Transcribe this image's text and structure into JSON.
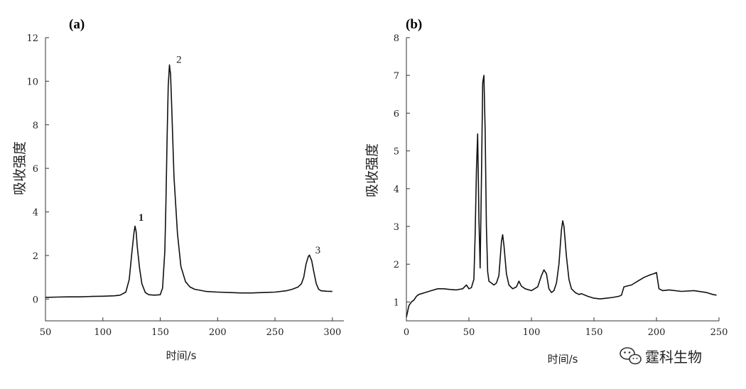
{
  "chart_data": [
    {
      "type": "line",
      "panel_label": "(a)",
      "xlabel": "时间/s",
      "ylabel": "吸收强度",
      "xlim": [
        50,
        310
      ],
      "ylim": [
        -1,
        12
      ],
      "xticks": [
        50,
        100,
        150,
        200,
        250,
        300
      ],
      "yticks": [
        0,
        2,
        4,
        6,
        8,
        10,
        12
      ],
      "grid": false,
      "series": [
        {
          "x": [
            50,
            60,
            70,
            80,
            90,
            100,
            110,
            115,
            120,
            123,
            125,
            127,
            128,
            129,
            130,
            132,
            134,
            137,
            140,
            145,
            150,
            152,
            154,
            155,
            156,
            157,
            158,
            159,
            160,
            162,
            165,
            168,
            172,
            176,
            180,
            185,
            190,
            200,
            210,
            220,
            230,
            240,
            250,
            260,
            265,
            270,
            273,
            275,
            277,
            279,
            280,
            282,
            284,
            286,
            288,
            290,
            295,
            300
          ],
          "y": [
            0.08,
            0.09,
            0.1,
            0.1,
            0.12,
            0.13,
            0.15,
            0.18,
            0.32,
            0.9,
            2.0,
            3.0,
            3.35,
            3.1,
            2.4,
            1.4,
            0.7,
            0.3,
            0.2,
            0.18,
            0.2,
            0.5,
            2.2,
            4.5,
            7.4,
            9.8,
            10.75,
            10.3,
            8.8,
            5.6,
            3.0,
            1.5,
            0.8,
            0.55,
            0.45,
            0.4,
            0.35,
            0.32,
            0.3,
            0.28,
            0.28,
            0.3,
            0.32,
            0.38,
            0.45,
            0.55,
            0.7,
            1.0,
            1.6,
            1.95,
            2.02,
            1.75,
            1.2,
            0.7,
            0.45,
            0.38,
            0.36,
            0.35
          ]
        }
      ],
      "annotations": [
        {
          "text": "1",
          "x": 131,
          "y": 3.6,
          "bold": true
        },
        {
          "text": "2",
          "x": 164,
          "y": 10.85,
          "bold": false
        },
        {
          "text": "3",
          "x": 285,
          "y": 2.1,
          "bold": false
        }
      ]
    },
    {
      "type": "line",
      "panel_label": "(b)",
      "xlabel": "时间/s",
      "ylabel": "吸收强度",
      "xlim": [
        0,
        250
      ],
      "ylim": [
        0.5,
        8
      ],
      "xticks": [
        0,
        50,
        100,
        150,
        200,
        250
      ],
      "yticks": [
        1,
        2,
        3,
        4,
        5,
        6,
        7,
        8
      ],
      "grid": false,
      "series": [
        {
          "x": [
            0,
            1,
            2,
            4,
            6,
            8,
            10,
            15,
            20,
            25,
            30,
            35,
            40,
            45,
            48,
            50,
            52,
            54,
            55,
            56,
            57,
            58,
            59,
            60,
            61,
            62,
            63,
            64,
            65,
            66,
            68,
            70,
            72,
            74,
            76,
            77,
            78,
            80,
            82,
            85,
            88,
            90,
            92,
            95,
            100,
            105,
            108,
            110,
            112,
            114,
            116,
            118,
            120,
            122,
            124,
            125,
            126,
            128,
            130,
            132,
            135,
            138,
            140,
            145,
            150,
            155,
            160,
            165,
            170,
            172,
            174,
            176,
            180,
            185,
            190,
            195,
            198,
            200,
            202,
            205,
            210,
            220,
            230,
            240,
            245,
            248
          ],
          "y": [
            0.6,
            0.75,
            0.9,
            1.0,
            1.05,
            1.15,
            1.2,
            1.25,
            1.3,
            1.35,
            1.35,
            1.33,
            1.32,
            1.35,
            1.45,
            1.35,
            1.38,
            1.6,
            2.8,
            4.5,
            5.45,
            3.2,
            1.9,
            4.2,
            6.8,
            7.0,
            5.5,
            3.0,
            1.8,
            1.55,
            1.5,
            1.45,
            1.5,
            1.7,
            2.6,
            2.78,
            2.5,
            1.75,
            1.45,
            1.35,
            1.4,
            1.55,
            1.42,
            1.35,
            1.3,
            1.4,
            1.7,
            1.85,
            1.75,
            1.35,
            1.25,
            1.3,
            1.5,
            2.0,
            2.9,
            3.15,
            3.0,
            2.2,
            1.6,
            1.35,
            1.25,
            1.2,
            1.22,
            1.15,
            1.1,
            1.08,
            1.1,
            1.12,
            1.15,
            1.18,
            1.4,
            1.42,
            1.45,
            1.55,
            1.65,
            1.72,
            1.75,
            1.78,
            1.35,
            1.3,
            1.32,
            1.28,
            1.3,
            1.25,
            1.2,
            1.18
          ]
        }
      ]
    }
  ],
  "watermark": {
    "icon": "wechat-icon",
    "text": "霆科生物"
  }
}
